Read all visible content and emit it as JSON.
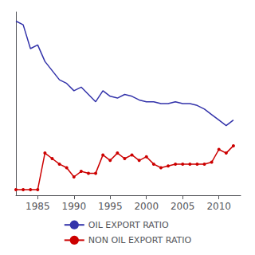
{
  "chart_data": {
    "type": "line",
    "x": [
      1982,
      1983,
      1984,
      1985,
      1986,
      1987,
      1988,
      1989,
      1990,
      1991,
      1992,
      1993,
      1994,
      1995,
      1996,
      1997,
      1998,
      1999,
      2000,
      2001,
      2002,
      2003,
      2004,
      2005,
      2006,
      2007,
      2008,
      2009,
      2010,
      2011,
      2012
    ],
    "series": [
      {
        "name": "OIL EXPORT RATIO",
        "color": "#3333aa",
        "marker": "none",
        "values": [
          0.95,
          0.93,
          0.8,
          0.82,
          0.73,
          0.68,
          0.63,
          0.61,
          0.57,
          0.59,
          0.55,
          0.51,
          0.57,
          0.54,
          0.53,
          0.55,
          0.54,
          0.52,
          0.51,
          0.51,
          0.5,
          0.5,
          0.51,
          0.5,
          0.5,
          0.49,
          0.47,
          0.44,
          0.41,
          0.38,
          0.41
        ]
      },
      {
        "name": "NON OIL EXPORT RATIO",
        "color": "#cc0000",
        "marker": "circle",
        "values": [
          0.03,
          0.03,
          0.03,
          0.03,
          0.23,
          0.2,
          0.17,
          0.15,
          0.1,
          0.13,
          0.12,
          0.12,
          0.22,
          0.19,
          0.23,
          0.2,
          0.22,
          0.19,
          0.21,
          0.17,
          0.15,
          0.16,
          0.17,
          0.17,
          0.17,
          0.17,
          0.17,
          0.18,
          0.25,
          0.23,
          0.27
        ]
      }
    ],
    "xlim": [
      1982,
      2013
    ],
    "ylim": [
      0.0,
      1.0
    ],
    "xticks": [
      1985,
      1990,
      1995,
      2000,
      2005,
      2010
    ],
    "tick_labels": "x",
    "legend": "bottom",
    "grid": false
  }
}
